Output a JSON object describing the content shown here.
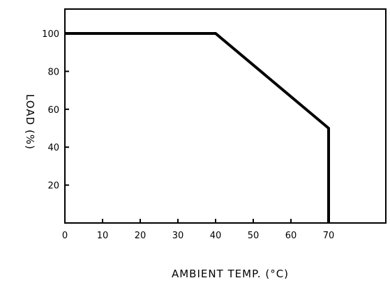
{
  "chart_data": {
    "type": "line",
    "xlabel": "AMBIENT  TEMP. (°C)",
    "ylabel": "LOAD (%)",
    "x_ticks": [
      0,
      10,
      20,
      30,
      40,
      50,
      60,
      70
    ],
    "y_ticks": [
      20,
      40,
      60,
      80,
      100
    ],
    "xlim": [
      0,
      100
    ],
    "ylim": [
      0,
      112
    ],
    "grid": false,
    "series": [
      {
        "x": [
          0,
          40,
          70,
          70
        ],
        "y": [
          100,
          100,
          50,
          0
        ]
      }
    ]
  },
  "colors": {
    "line": "#000000",
    "axis": "#000000",
    "background": "#ffffff"
  }
}
